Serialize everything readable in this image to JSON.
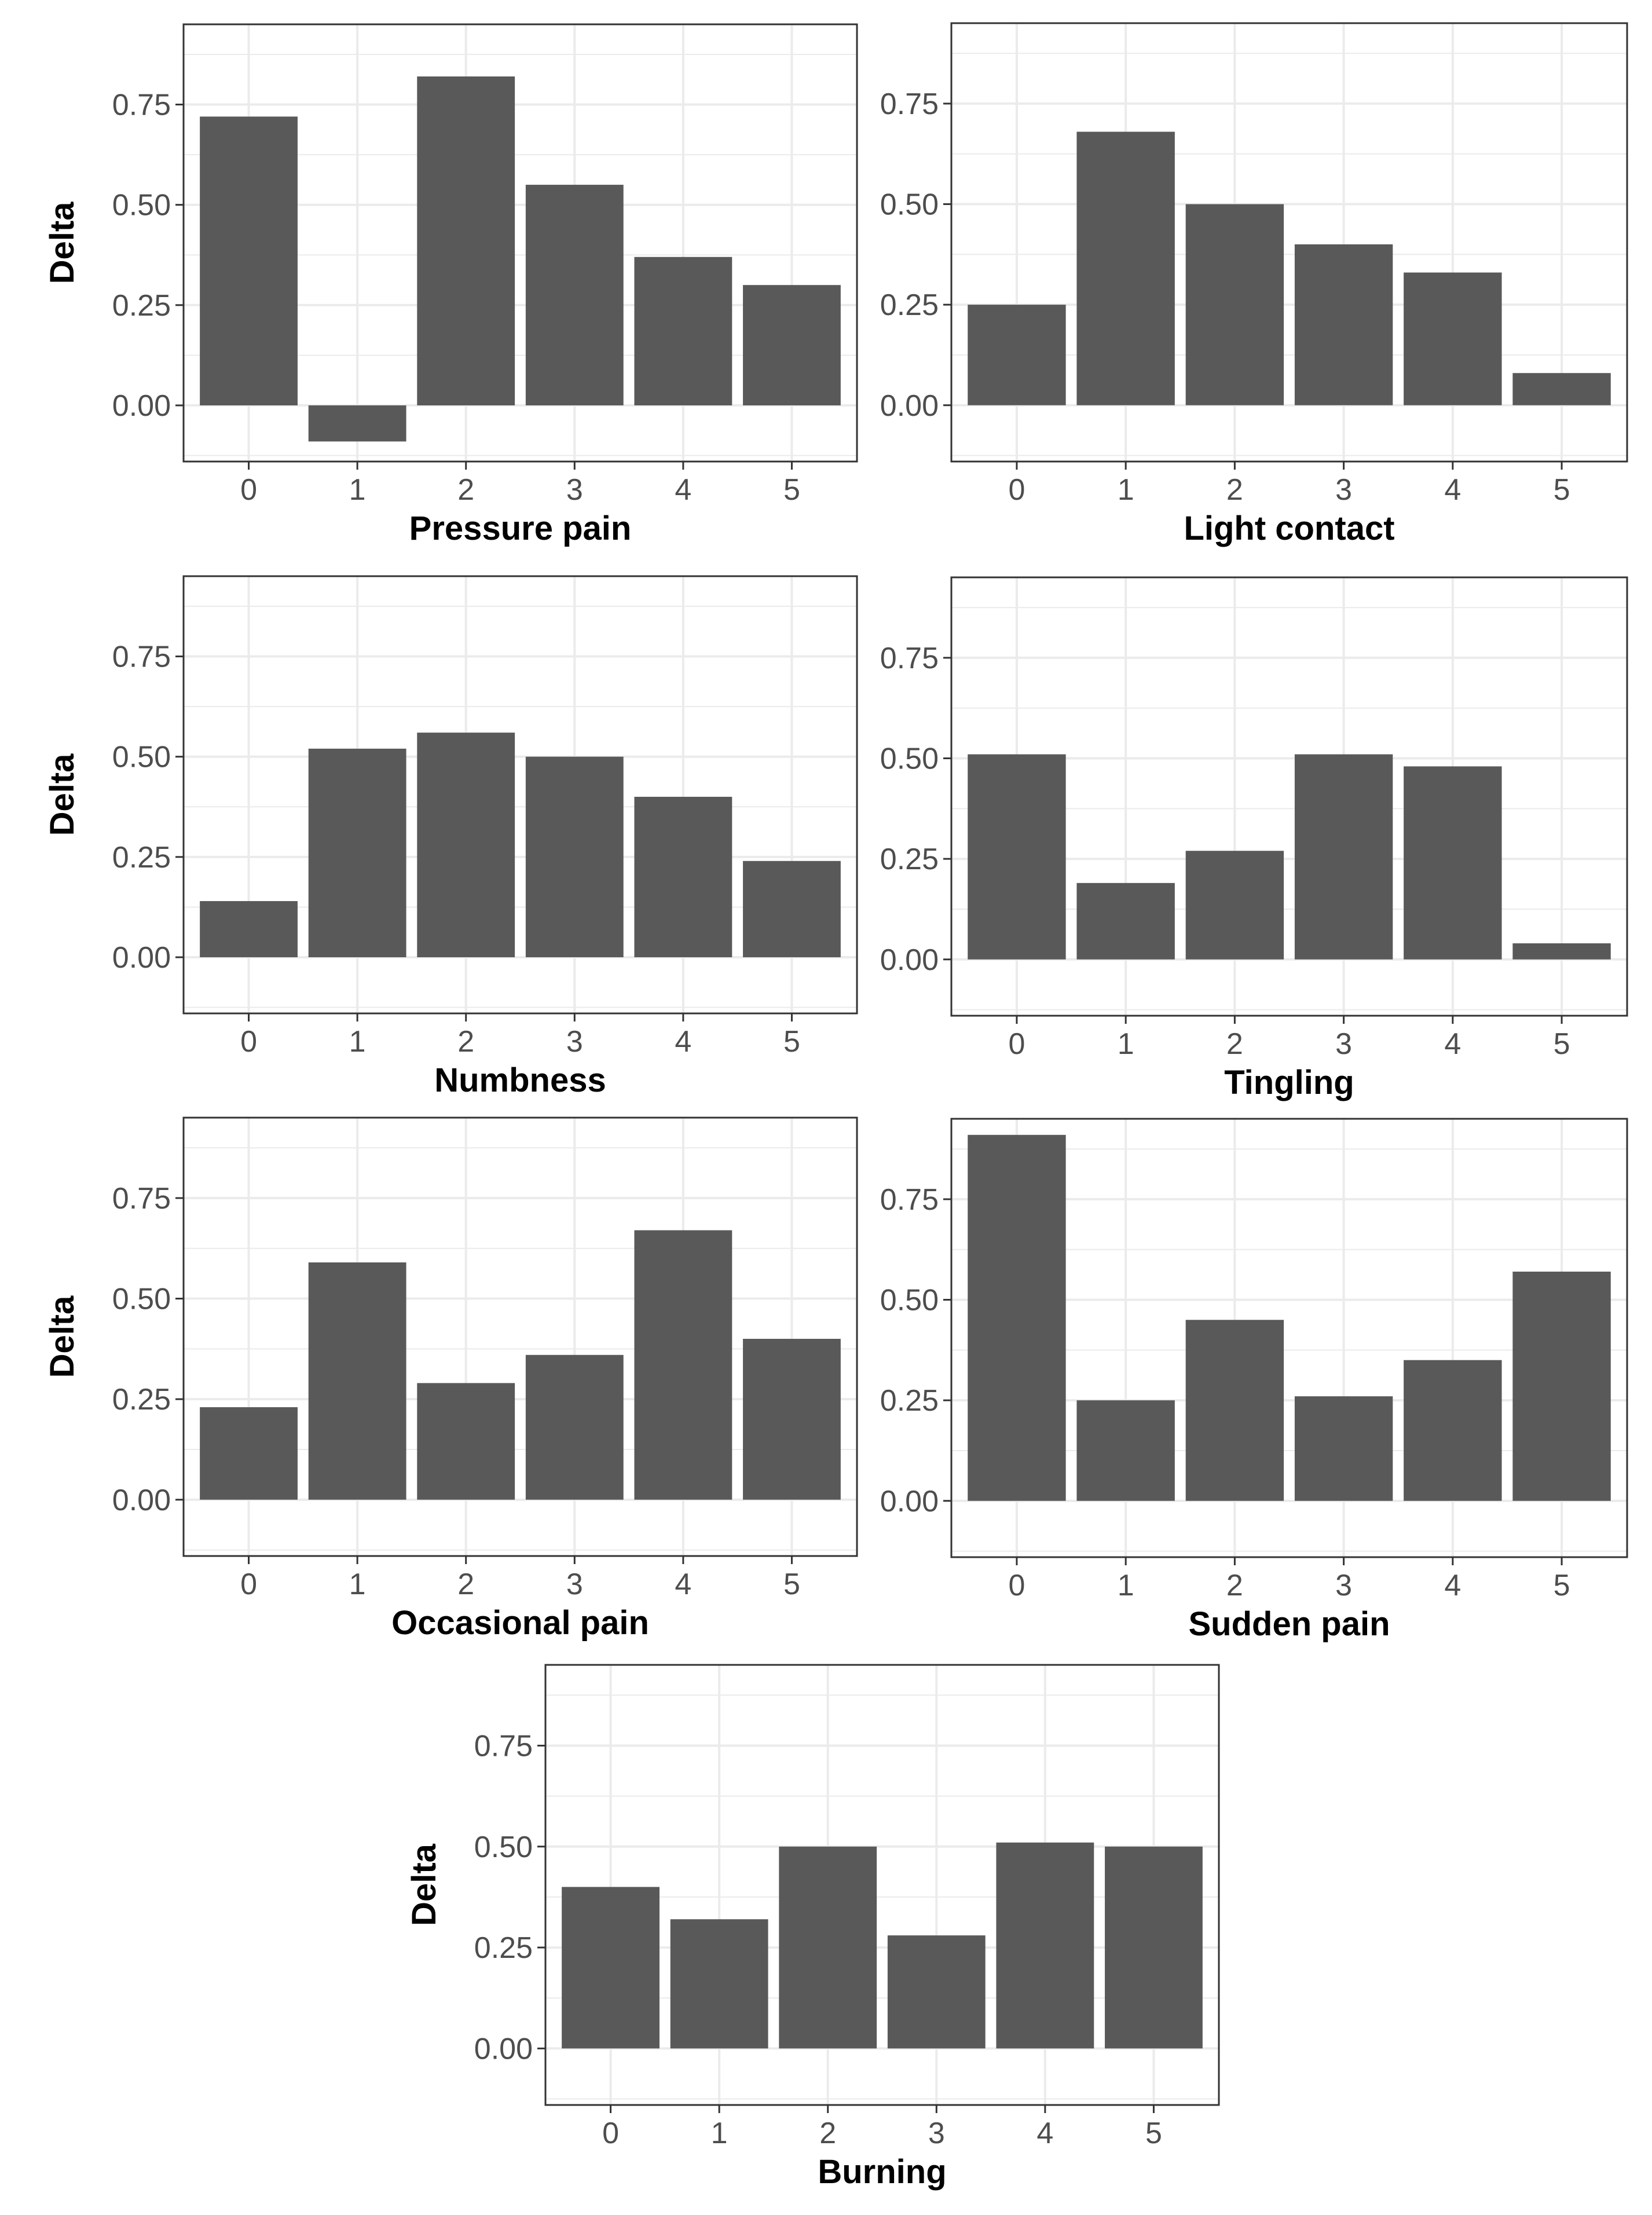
{
  "figure": {
    "bar_color": "#595959",
    "grid_color": "#ebebeb",
    "panel_border_color": "#333333",
    "background": "#ffffff"
  },
  "chart_data": [
    {
      "type": "bar",
      "xlabel": "Pressure pain",
      "ylabel": "Delta",
      "categories": [
        "0",
        "1",
        "2",
        "3",
        "4",
        "5"
      ],
      "values": [
        0.72,
        -0.09,
        0.82,
        0.55,
        0.37,
        0.3
      ],
      "ylim": [
        -0.14,
        0.95
      ],
      "yticks": [
        "0.00",
        "0.25",
        "0.50",
        "0.75"
      ],
      "grid": true,
      "legend": "none"
    },
    {
      "type": "bar",
      "xlabel": "Light contact",
      "ylabel": "",
      "categories": [
        "0",
        "1",
        "2",
        "3",
        "4",
        "5"
      ],
      "values": [
        0.25,
        0.68,
        0.5,
        0.4,
        0.33,
        0.08
      ],
      "ylim": [
        -0.14,
        0.95
      ],
      "yticks": [
        "0.00",
        "0.25",
        "0.50",
        "0.75"
      ],
      "grid": true,
      "legend": "none"
    },
    {
      "type": "bar",
      "xlabel": "Numbness",
      "ylabel": "Delta",
      "categories": [
        "0",
        "1",
        "2",
        "3",
        "4",
        "5"
      ],
      "values": [
        0.14,
        0.52,
        0.56,
        0.5,
        0.4,
        0.24
      ],
      "ylim": [
        -0.14,
        0.95
      ],
      "yticks": [
        "0.00",
        "0.25",
        "0.50",
        "0.75"
      ],
      "grid": true,
      "legend": "none"
    },
    {
      "type": "bar",
      "xlabel": "Tingling",
      "ylabel": "",
      "categories": [
        "0",
        "1",
        "2",
        "3",
        "4",
        "5"
      ],
      "values": [
        0.51,
        0.19,
        0.27,
        0.51,
        0.48,
        0.04
      ],
      "ylim": [
        -0.14,
        0.95
      ],
      "yticks": [
        "0.00",
        "0.25",
        "0.50",
        "0.75"
      ],
      "grid": true,
      "legend": "none"
    },
    {
      "type": "bar",
      "xlabel": "Occasional pain",
      "ylabel": "Delta",
      "categories": [
        "0",
        "1",
        "2",
        "3",
        "4",
        "5"
      ],
      "values": [
        0.23,
        0.59,
        0.29,
        0.36,
        0.67,
        0.4
      ],
      "ylim": [
        -0.14,
        0.95
      ],
      "yticks": [
        "0.00",
        "0.25",
        "0.50",
        "0.75"
      ],
      "grid": true,
      "legend": "none"
    },
    {
      "type": "bar",
      "xlabel": "Sudden pain",
      "ylabel": "",
      "categories": [
        "0",
        "1",
        "2",
        "3",
        "4",
        "5"
      ],
      "values": [
        0.91,
        0.25,
        0.45,
        0.26,
        0.35,
        0.57
      ],
      "ylim": [
        -0.14,
        0.95
      ],
      "yticks": [
        "0.00",
        "0.25",
        "0.50",
        "0.75"
      ],
      "grid": true,
      "legend": "none"
    },
    {
      "type": "bar",
      "xlabel": "Burning",
      "ylabel": "Delta",
      "categories": [
        "0",
        "1",
        "2",
        "3",
        "4",
        "5"
      ],
      "values": [
        0.4,
        0.32,
        0.5,
        0.28,
        0.51,
        0.5
      ],
      "ylim": [
        -0.14,
        0.95
      ],
      "yticks": [
        "0.00",
        "0.25",
        "0.50",
        "0.75"
      ],
      "grid": true,
      "legend": "none"
    }
  ]
}
